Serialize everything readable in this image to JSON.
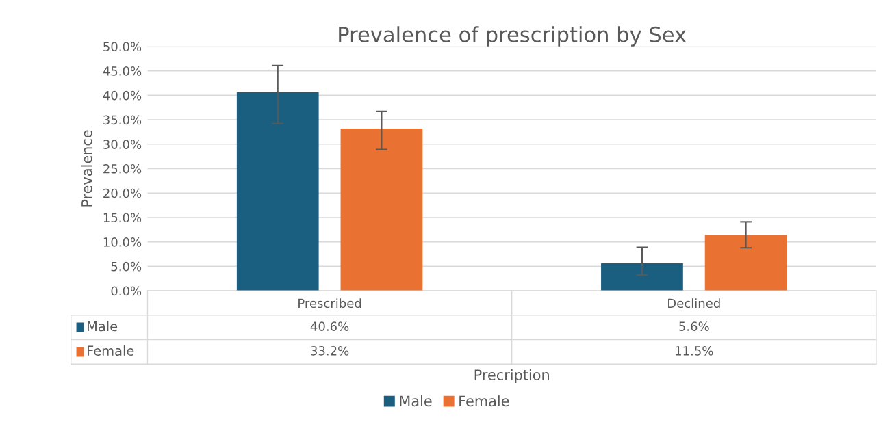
{
  "chart_data": {
    "type": "bar",
    "title": "Prevalence of prescription by Sex",
    "xlabel": "Precription",
    "ylabel": "Prevalence",
    "categories": [
      "Prescribed",
      "Declined"
    ],
    "series": [
      {
        "name": "Male",
        "color": "#1a5e80",
        "values": [
          40.6,
          5.6
        ],
        "errors": [
          [
            34.2,
            46.1
          ],
          [
            3.2,
            8.9
          ]
        ],
        "value_labels": [
          "40.6%",
          "5.6%"
        ]
      },
      {
        "name": "Female",
        "color": "#e97132",
        "values": [
          33.2,
          11.5
        ],
        "errors": [
          [
            28.9,
            36.7
          ],
          [
            8.8,
            14.1
          ]
        ],
        "value_labels": [
          "33.2%",
          "11.5%"
        ]
      }
    ],
    "ylim": [
      0,
      50
    ],
    "yticks": [
      {
        "value": 0,
        "label": "0.0%"
      },
      {
        "value": 5,
        "label": "5.0%"
      },
      {
        "value": 10,
        "label": "10.0%"
      },
      {
        "value": 15,
        "label": "15.0%"
      },
      {
        "value": 20,
        "label": "20.0%"
      },
      {
        "value": 25,
        "label": "25.0%"
      },
      {
        "value": 30,
        "label": "30.0%"
      },
      {
        "value": 35,
        "label": "35.0%"
      },
      {
        "value": 40,
        "label": "40.0%"
      },
      {
        "value": 45,
        "label": "45.0%"
      },
      {
        "value": 50,
        "label": "50.0%"
      }
    ],
    "grid": "y",
    "legend": "bottom"
  }
}
